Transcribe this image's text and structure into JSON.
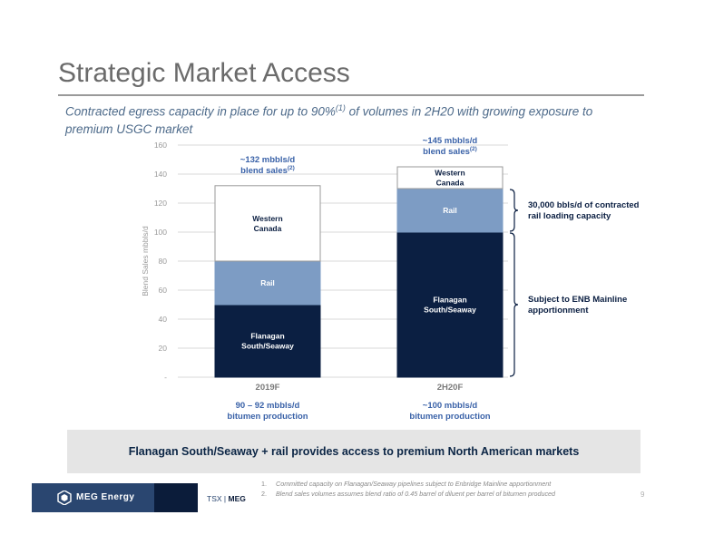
{
  "page": {
    "title": "Strategic Market Access",
    "subtitle_main": "Contracted egress capacity in place for up to 90%",
    "subtitle_sup": "(1)",
    "subtitle_rest": " of volumes in 2H20 with growing exposure to premium USGC market",
    "callout": "Flanagan South/Seaway + rail provides access to premium North American markets",
    "footnotes": [
      {
        "num": "1.",
        "text": "Committed capacity on Flanagan/Seaway pipelines subject to Enbridge Mainline apportionment"
      },
      {
        "num": "2.",
        "text": "Blend sales volumes assumes blend ratio of 0.45 barrel of diluent per barrel of bitumen produced"
      }
    ],
    "footer": {
      "logo_text": "MEG Energy",
      "ticker_prefix": "TSX",
      "ticker_sep": "|",
      "ticker": "MEG",
      "page_number": "9"
    }
  },
  "chart_data": {
    "type": "bar",
    "stacked": true,
    "ylabel": "Blend Sales mbbls/d",
    "ylim": [
      0,
      160
    ],
    "yticks": [
      {
        "value": 0,
        "label": "-"
      },
      {
        "value": 20,
        "label": "20"
      },
      {
        "value": 40,
        "label": "40"
      },
      {
        "value": 60,
        "label": "60"
      },
      {
        "value": 80,
        "label": "80"
      },
      {
        "value": 100,
        "label": "100"
      },
      {
        "value": 120,
        "label": "120"
      },
      {
        "value": 140,
        "label": "140"
      },
      {
        "value": 160,
        "label": "160"
      }
    ],
    "grid": true,
    "categories": [
      "2019F",
      "2H20F"
    ],
    "series": [
      {
        "name": "Flanagan South/Seaway",
        "label_lines": [
          "Flanagan",
          "South/Seaway"
        ],
        "color": "#0b1f42",
        "text_color": "#ffffff",
        "values": [
          50,
          100
        ]
      },
      {
        "name": "Rail",
        "label_lines": [
          "Rail"
        ],
        "color": "#7d9cc4",
        "text_color": "#ffffff",
        "values": [
          30,
          30
        ]
      },
      {
        "name": "Western Canada",
        "label_lines": [
          "Western",
          "Canada"
        ],
        "color": "#ffffff",
        "text_color": "#0b1f42",
        "values": [
          52,
          15
        ]
      }
    ],
    "top_labels": [
      {
        "line1": "~132 mbbls/d",
        "line2": "blend sales",
        "sup": "(2)"
      },
      {
        "line1": "~145 mbbls/d",
        "line2": "blend sales",
        "sup": "(2)"
      }
    ],
    "bottom_labels": [
      {
        "line1": "90 – 92 mbbls/d",
        "line2": "bitumen production"
      },
      {
        "line1": "~100 mbbls/d",
        "line2": "bitumen production"
      }
    ],
    "annotations": [
      {
        "text_lines": [
          "30,000 bbls/d of contracted",
          "rail loading capacity"
        ],
        "from": 100,
        "to": 130
      },
      {
        "text_lines": [
          "Subject to ENB Mainline",
          "apportionment"
        ],
        "from": 0,
        "to": 100
      }
    ],
    "accent_color": "#0b1f42",
    "label_color": "#3a62a8"
  }
}
